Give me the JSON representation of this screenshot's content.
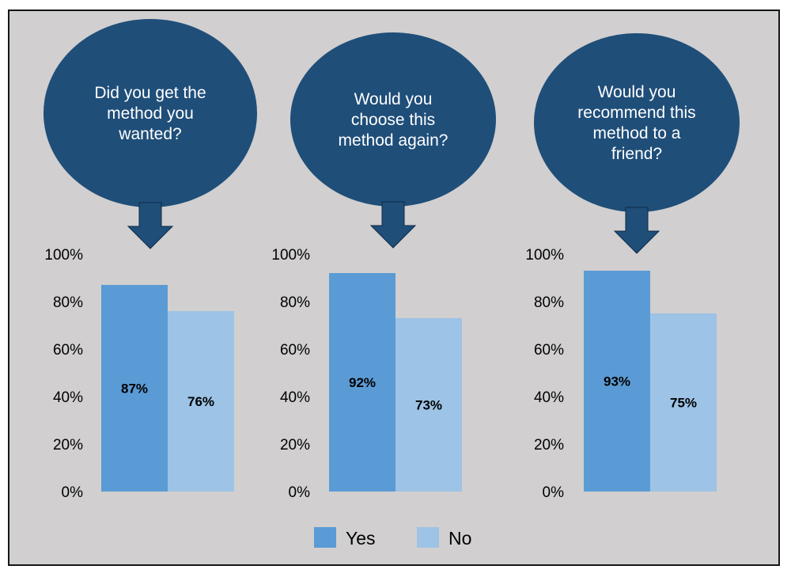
{
  "colors": {
    "yes": "#5b9bd5",
    "no": "#9dc3e6",
    "bubble": "#1f4e79",
    "background": "#d1cfcf"
  },
  "chart_data": [
    {
      "type": "bar",
      "title": "Did you get the method you wanted?",
      "categories": [
        "Yes",
        "No"
      ],
      "values": [
        87,
        76
      ],
      "labels": [
        "87%",
        "76%"
      ],
      "ylim": [
        0,
        100
      ],
      "yticks": [
        "0%",
        "20%",
        "40%",
        "60%",
        "80%",
        "100%"
      ]
    },
    {
      "type": "bar",
      "title": "Would you choose this method again?",
      "categories": [
        "Yes",
        "No"
      ],
      "values": [
        92,
        73
      ],
      "labels": [
        "92%",
        "73%"
      ],
      "ylim": [
        0,
        100
      ],
      "yticks": [
        "0%",
        "20%",
        "40%",
        "60%",
        "80%",
        "100%"
      ]
    },
    {
      "type": "bar",
      "title": "Would you recommend this method to a friend?",
      "categories": [
        "Yes",
        "No"
      ],
      "values": [
        93,
        75
      ],
      "labels": [
        "93%",
        "75%"
      ],
      "ylim": [
        0,
        100
      ],
      "yticks": [
        "0%",
        "20%",
        "40%",
        "60%",
        "80%",
        "100%"
      ]
    }
  ],
  "legend": [
    {
      "label": "Yes",
      "color": "#5b9bd5"
    },
    {
      "label": "No",
      "color": "#9dc3e6"
    }
  ]
}
